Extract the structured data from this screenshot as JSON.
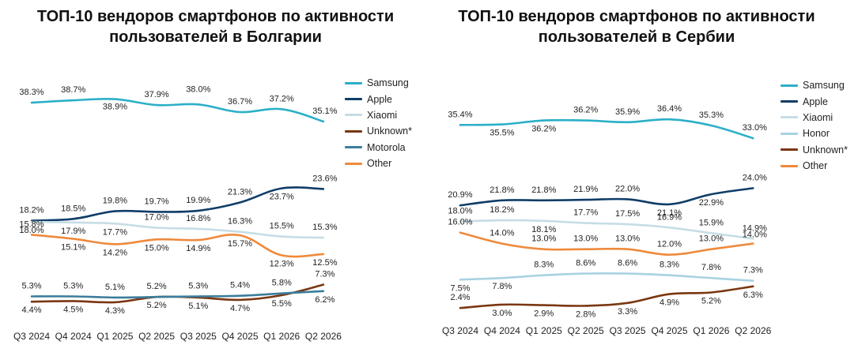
{
  "chart_data": [
    {
      "type": "line",
      "title": [
        "ТОП-10 вендоров смартфонов по активности",
        "пользователей в Болгарии"
      ],
      "categories": [
        "Q3 2024",
        "Q4 2024",
        "Q1 2025",
        "Q2 2025",
        "Q3 2025",
        "Q4 2025",
        "Q1 2026",
        "Q2 2026"
      ],
      "series": [
        {
          "name": "Samsung",
          "color": "#2bafc8",
          "values": [
            38.3,
            38.7,
            38.9,
            37.9,
            38.0,
            36.7,
            37.2,
            35.1
          ],
          "labels": [
            "38.3%",
            "38.7%",
            "38.9%",
            "37.9%",
            "38.0%",
            "36.7%",
            "37.2%",
            "35.1%"
          ]
        },
        {
          "name": "Apple",
          "color": "#0f3d68",
          "values": [
            18.2,
            18.5,
            19.8,
            19.7,
            19.9,
            21.3,
            23.7,
            23.6
          ],
          "labels": [
            "18.2%",
            "18.5%",
            "19.8%",
            "19.7%",
            "19.9%",
            "21.3%",
            "23.7%",
            "23.6%"
          ]
        },
        {
          "name": "Xiaomi",
          "color": "#c7dde6",
          "values": [
            18.0,
            17.9,
            17.7,
            17.0,
            16.8,
            16.3,
            15.5,
            15.3
          ],
          "labels": [
            "18.0%",
            "17.9%",
            "17.7%",
            "17.0%",
            "16.8%",
            "16.3%",
            "15.5%",
            "15.3%"
          ]
        },
        {
          "name": "Unknown*",
          "color": "#7a3711",
          "values": [
            4.4,
            4.5,
            4.3,
            5.2,
            5.1,
            4.7,
            5.5,
            7.3
          ],
          "labels": [
            "4.4%",
            "4.5%",
            "4.3%",
            "5.2%",
            "5.1%",
            "4.7%",
            "5.5%",
            "7.3%"
          ]
        },
        {
          "name": "Motorola",
          "color": "#3c7d9c",
          "values": [
            5.3,
            5.3,
            5.1,
            5.2,
            5.3,
            5.4,
            5.8,
            6.2
          ],
          "labels": [
            "5.3%",
            "5.3%",
            "5.1%",
            "5.2%",
            "5.3%",
            "5.4%",
            "5.8%",
            "6.2%"
          ]
        },
        {
          "name": "Other",
          "color": "#ee8a3c",
          "values": [
            15.8,
            15.1,
            14.2,
            15.0,
            14.9,
            15.7,
            12.3,
            12.5
          ],
          "labels": [
            "15.8%",
            "15.1%",
            "14.2%",
            "15.0%",
            "14.9%",
            "15.7%",
            "12.3%",
            "12.5%"
          ]
        }
      ],
      "ylim": [
        2,
        41
      ],
      "legend": "right-top"
    },
    {
      "type": "line",
      "title": [
        "ТОП-10 вендоров смартфонов по активности",
        "пользователей в Сербии"
      ],
      "categories": [
        "Q3 2024",
        "Q4 2024",
        "Q1 2025",
        "Q2 2025",
        "Q3 2025",
        "Q4 2025",
        "Q1 2026",
        "Q2 2026"
      ],
      "series": [
        {
          "name": "Samsung",
          "color": "#2bafc8",
          "values": [
            35.4,
            35.5,
            36.2,
            36.2,
            35.9,
            36.4,
            35.3,
            33.0
          ],
          "labels": [
            "35.4%",
            "35.5%",
            "36.2%",
            "36.2%",
            "35.9%",
            "36.4%",
            "35.3%",
            "33.0%"
          ]
        },
        {
          "name": "Apple",
          "color": "#0f3d68",
          "values": [
            20.9,
            21.8,
            21.8,
            21.9,
            22.0,
            21.1,
            22.9,
            24.0
          ],
          "labels": [
            "20.9%",
            "21.8%",
            "21.8%",
            "21.9%",
            "22.0%",
            "21.1%",
            "22.9%",
            "24.0%"
          ]
        },
        {
          "name": "Xiaomi",
          "color": "#c7dde6",
          "values": [
            18.0,
            18.2,
            18.1,
            17.7,
            17.5,
            16.9,
            15.9,
            14.9
          ],
          "labels": [
            "18.0%",
            "18.2%",
            "18.1%",
            "17.7%",
            "17.5%",
            "16.9%",
            "15.9%",
            "14.9%"
          ]
        },
        {
          "name": "Honor",
          "color": "#a9d2e2",
          "values": [
            7.5,
            7.8,
            8.3,
            8.6,
            8.6,
            8.3,
            7.8,
            7.3
          ],
          "labels": [
            "7.5%",
            "7.8%",
            "8.3%",
            "8.6%",
            "8.6%",
            "8.3%",
            "7.8%",
            "7.3%"
          ]
        },
        {
          "name": "Unknown*",
          "color": "#7a3711",
          "values": [
            2.4,
            3.0,
            2.9,
            2.8,
            3.3,
            4.9,
            5.2,
            6.3
          ],
          "labels": [
            "2.4%",
            "3.0%",
            "2.9%",
            "2.8%",
            "3.3%",
            "4.9%",
            "5.2%",
            "6.3%"
          ]
        },
        {
          "name": "Other",
          "color": "#ee8a3c",
          "values": [
            16.0,
            14.0,
            13.0,
            13.0,
            13.0,
            12.0,
            13.0,
            14.0
          ],
          "labels": [
            "16.0%",
            "14.0%",
            "13.0%",
            "13.0%",
            "13.0%",
            "12.0%",
            "13.0%",
            "14.0%"
          ]
        }
      ],
      "ylim": [
        1,
        38
      ],
      "legend": "right-top"
    }
  ]
}
